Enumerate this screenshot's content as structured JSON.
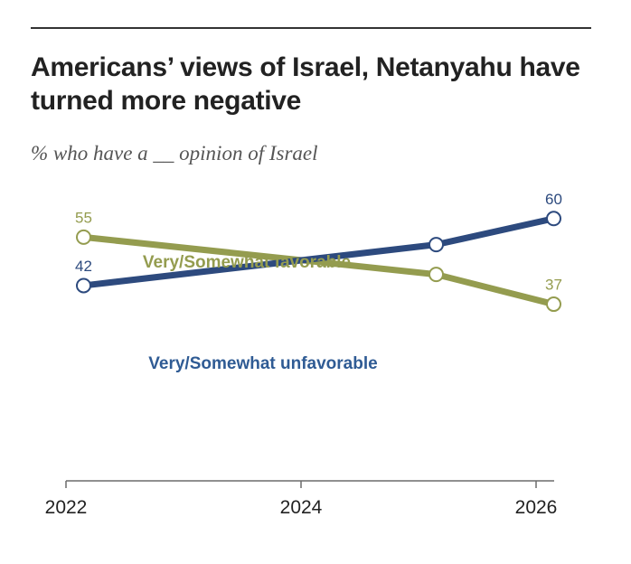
{
  "header": {
    "title": "Americans’ views of Israel, Netanyahu have turned more negative",
    "subtitle": "% who have a __ opinion of Israel"
  },
  "chart_data": {
    "type": "line",
    "title": "Americans’ views of Israel, Netanyahu have turned more negative",
    "subtitle": "% who have a __ opinion of Israel",
    "xlabel": "",
    "ylabel": "",
    "x_ticks": [
      "2022",
      "2024",
      "2026"
    ],
    "xlim": [
      2022,
      2026
    ],
    "ylim": [
      0,
      80
    ],
    "grid": false,
    "legend": "inline labels",
    "series": [
      {
        "name": "Very/Somewhat favorable",
        "color": "#949c4f",
        "points": [
          {
            "x": 2022.15,
            "y": 55,
            "label": "55"
          },
          {
            "x": 2025.15,
            "y": 45,
            "label": ""
          },
          {
            "x": 2026.15,
            "y": 37,
            "label": "37"
          }
        ]
      },
      {
        "name": "Very/Somewhat unfavorable",
        "color": "#2d4a7e",
        "points": [
          {
            "x": 2022.15,
            "y": 42,
            "label": "42"
          },
          {
            "x": 2025.15,
            "y": 53,
            "label": ""
          },
          {
            "x": 2026.15,
            "y": 60,
            "label": "60"
          }
        ]
      }
    ]
  }
}
